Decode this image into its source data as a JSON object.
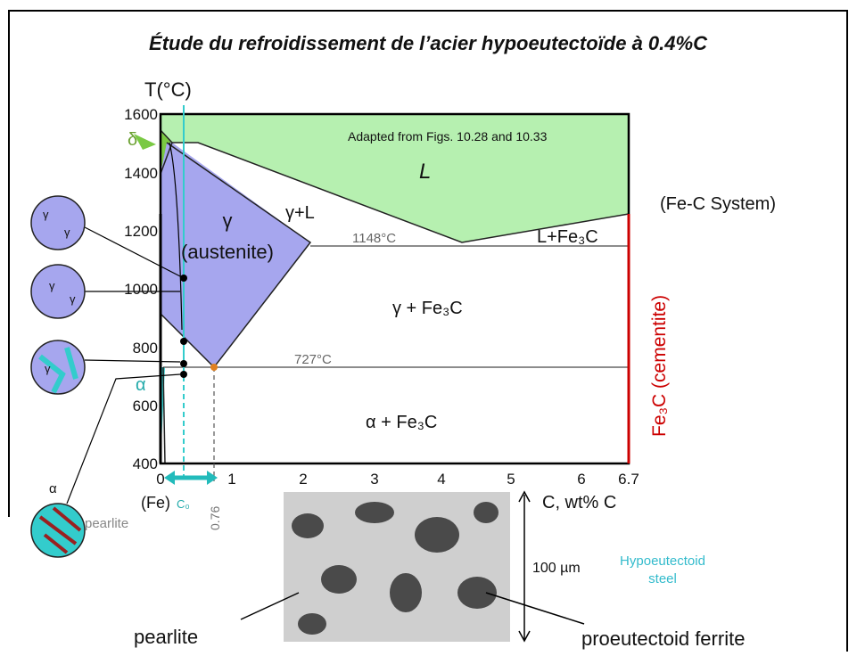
{
  "title": "Étude du refroidissement de l’acier hypoeutectoïde à 0.4%C",
  "diagram": {
    "y_axis_label": "T(°C)",
    "y_ticks": [
      "1600",
      "1400",
      "1200",
      "1000",
      "800",
      "600",
      "400"
    ],
    "x_ticks": [
      "0",
      "1",
      "2",
      "3",
      "4",
      "5",
      "6",
      "6.7"
    ],
    "x_axis_label": "C, wt% C",
    "source_note": "Adapted from Figs. 10.28 and 10.33",
    "system": "(Fe-C System)",
    "regions": {
      "liquid": "L",
      "gamma_liquid": "γ+L",
      "gamma": "γ",
      "austenite": "(austenite)",
      "liquid_cementite": "L+Fe₃C",
      "gamma_cementite": "γ + Fe₃C",
      "alpha_cementite": "α + Fe₃C",
      "delta": "δ",
      "alpha": "α"
    },
    "eutectic_temperature": "1148°C",
    "eutectoid_temperature": "727°C",
    "iron_label": "(Fe)",
    "c0_label": "C₀",
    "eutectoid_composition": "0.76",
    "cementite_label": "Fe₃C (cementite)"
  },
  "microstructures": {
    "gamma": "γ",
    "alpha": "α",
    "pearlite": "pearlite"
  },
  "micrograph": {
    "scale": "100 µm",
    "caption_line1": "Hypoeutectoid",
    "caption_line2": "steel",
    "left_label": "pearlite",
    "right_label": "proeutectoid ferrite"
  }
}
